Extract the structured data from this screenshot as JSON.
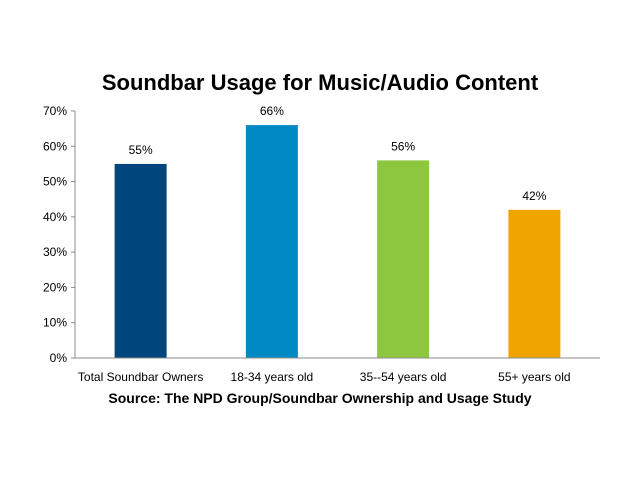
{
  "chart_data": {
    "type": "bar",
    "title": "Soundbar Usage for Music/Audio Content",
    "categories": [
      "Total Soundbar Owners",
      "18-34 years old",
      "35--54 years old",
      "55+ years old"
    ],
    "values": [
      55,
      66,
      56,
      42
    ],
    "data_labels": [
      "55%",
      "66%",
      "56%",
      "42%"
    ],
    "colors": [
      "#00457C",
      "#0089C2",
      "#8DC63F",
      "#F0A400"
    ],
    "y_ticks": [
      "0%",
      "10%",
      "20%",
      "30%",
      "40%",
      "50%",
      "60%",
      "70%"
    ],
    "ylim": [
      0,
      70
    ],
    "grid": false,
    "legend": "none",
    "xlabel": "",
    "ylabel": ""
  },
  "source": "Source: The NPD Group/Soundbar Ownership and Usage Study"
}
